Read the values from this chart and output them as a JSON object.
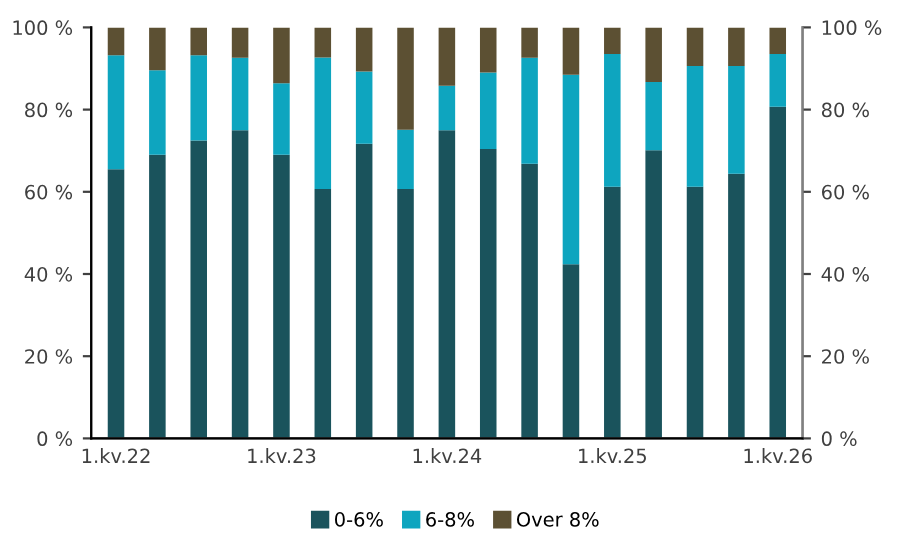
{
  "chart_data": {
    "type": "bar",
    "stacked": true,
    "categories": [
      "1.kv.22",
      null,
      null,
      null,
      "1.kv.23",
      null,
      null,
      null,
      "1.kv.24",
      null,
      null,
      null,
      "1.kv.25",
      null,
      null,
      null,
      "1.kv.26"
    ],
    "series": [
      {
        "name": "0-6%",
        "color": "#1a535c",
        "values": [
          65.5,
          69,
          72.5,
          75,
          69,
          60.7,
          71.7,
          60.7,
          75,
          70.4,
          66.8,
          42.4,
          61.2,
          70.1,
          61.2,
          64.4,
          80.7
        ]
      },
      {
        "name": "6-8%",
        "color": "#0ea5bf",
        "values": [
          27.7,
          20.6,
          20.7,
          17.6,
          17.4,
          32,
          17.6,
          14.4,
          10.8,
          18.6,
          25.8,
          46.1,
          32.3,
          16.6,
          29.4,
          26.2,
          12.8
        ]
      },
      {
        "name": "Over 8%",
        "color": "#5c5033",
        "values": [
          6.8,
          10.4,
          6.8,
          7.4,
          13.6,
          7.3,
          10.7,
          24.9,
          14.2,
          11,
          7.4,
          11.5,
          6.5,
          13.3,
          9.4,
          9.4,
          6.5
        ]
      }
    ],
    "ylim": [
      0,
      100
    ],
    "yticks": [
      {
        "value": 0,
        "label": "0 %"
      },
      {
        "value": 20,
        "label": "20 %"
      },
      {
        "value": 40,
        "label": "40 %"
      },
      {
        "value": 60,
        "label": "60 %"
      },
      {
        "value": 80,
        "label": "80 %"
      },
      {
        "value": 100,
        "label": "100 %"
      }
    ],
    "y2lim": [
      0,
      100
    ],
    "y2ticks": [
      {
        "value": 0,
        "label": "0 %"
      },
      {
        "value": 20,
        "label": "20 %"
      },
      {
        "value": 40,
        "label": "40 %"
      },
      {
        "value": 60,
        "label": "60 %"
      },
      {
        "value": 80,
        "label": "80 %"
      },
      {
        "value": 100,
        "label": "100 %"
      }
    ],
    "grid": false,
    "legend": "bottom"
  }
}
